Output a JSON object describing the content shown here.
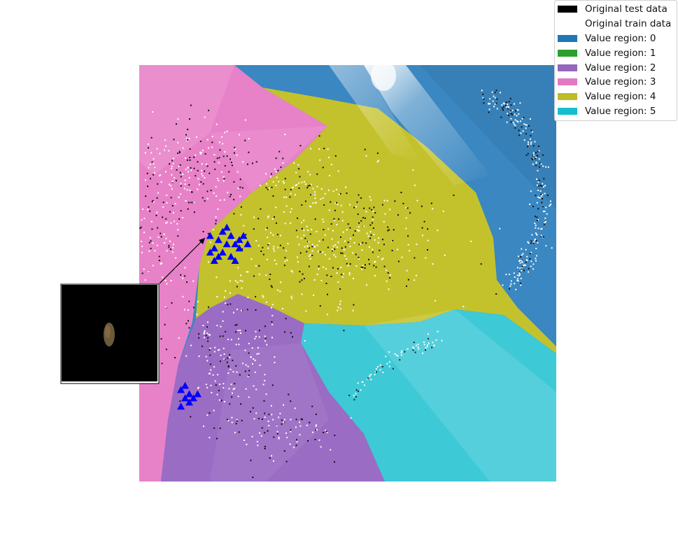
{
  "chart_data": {
    "type": "scatter",
    "title": "",
    "xlabel": "",
    "ylabel": "",
    "grid": false,
    "axes_visible": false,
    "legend_placement": "top-right",
    "legend": [
      {
        "label": "Original test data",
        "color": "#000000"
      },
      {
        "label": "Original train data",
        "color": "#ffffff"
      },
      {
        "label": "Value region: 0",
        "color": "#1f77b4"
      },
      {
        "label": "Value region: 1",
        "color": "#2ca02c"
      },
      {
        "label": "Value region: 2",
        "color": "#9467bd"
      },
      {
        "label": "Value region: 3",
        "color": "#e377c2"
      },
      {
        "label": "Value region: 4",
        "color": "#bcbd22"
      },
      {
        "label": "Value region: 5",
        "color": "#17becf"
      }
    ],
    "regions": [
      {
        "value": 0,
        "color": "#3a87c1",
        "present": true
      },
      {
        "value": 1,
        "color": "#2ca02c",
        "present": false
      },
      {
        "value": 2,
        "color": "#9b6cc4",
        "present": true
      },
      {
        "value": 3,
        "color": "#e882c8",
        "present": true
      },
      {
        "value": 4,
        "color": "#c4c22c",
        "present": true
      },
      {
        "value": 5,
        "color": "#3ec9d6",
        "present": true
      }
    ],
    "highlight_markers": {
      "color": "#0000ff",
      "shape": "triangle",
      "cluster_1": [
        [
          0.17,
          0.41
        ],
        [
          0.19,
          0.42
        ],
        [
          0.2,
          0.4
        ],
        [
          0.22,
          0.41
        ],
        [
          0.21,
          0.43
        ],
        [
          0.18,
          0.44
        ],
        [
          0.23,
          0.43
        ],
        [
          0.24,
          0.42
        ],
        [
          0.2,
          0.45
        ],
        [
          0.22,
          0.46
        ],
        [
          0.17,
          0.45
        ],
        [
          0.19,
          0.46
        ],
        [
          0.25,
          0.41
        ],
        [
          0.24,
          0.44
        ],
        [
          0.21,
          0.39
        ],
        [
          0.23,
          0.47
        ],
        [
          0.18,
          0.47
        ],
        [
          0.26,
          0.43
        ]
      ],
      "cluster_2": [
        [
          0.1,
          0.78
        ],
        [
          0.11,
          0.77
        ],
        [
          0.12,
          0.79
        ],
        [
          0.13,
          0.8
        ],
        [
          0.11,
          0.8
        ],
        [
          0.14,
          0.79
        ],
        [
          0.12,
          0.81
        ],
        [
          0.1,
          0.82
        ]
      ]
    },
    "inset": {
      "background": "#000000",
      "description_color": "#6b5a3a",
      "arrow_target": [
        0.16,
        0.42
      ]
    }
  }
}
